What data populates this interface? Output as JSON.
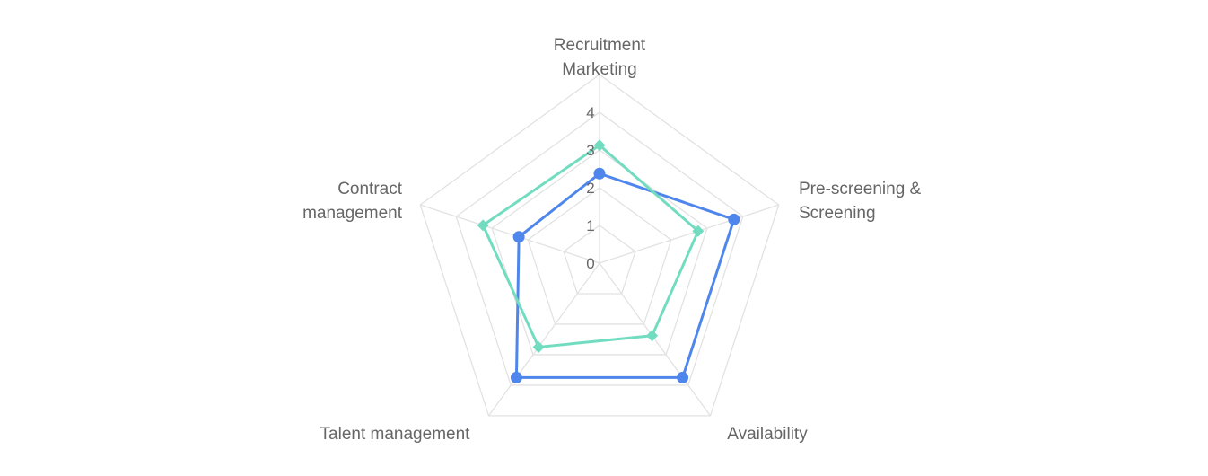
{
  "chart_data": {
    "type": "radar",
    "categories": [
      [
        "Recruitment",
        "Marketing"
      ],
      [
        "Pre-screening &",
        "Screening"
      ],
      [
        "Availability"
      ],
      [
        "Talent management"
      ],
      [
        "Contract",
        "management"
      ]
    ],
    "rlim": [
      0,
      4
    ],
    "ticks": [
      "0",
      "1",
      "2",
      "3",
      "4"
    ],
    "grid": true,
    "series": [
      {
        "values": [
          1.9,
          3.0,
          3.0,
          3.0,
          1.8
        ],
        "color": "#4f86ec",
        "marker": "circle"
      },
      {
        "values": [
          2.5,
          2.2,
          1.9,
          2.2,
          2.6
        ],
        "color": "#72dcc0",
        "marker": "diamond"
      }
    ]
  }
}
